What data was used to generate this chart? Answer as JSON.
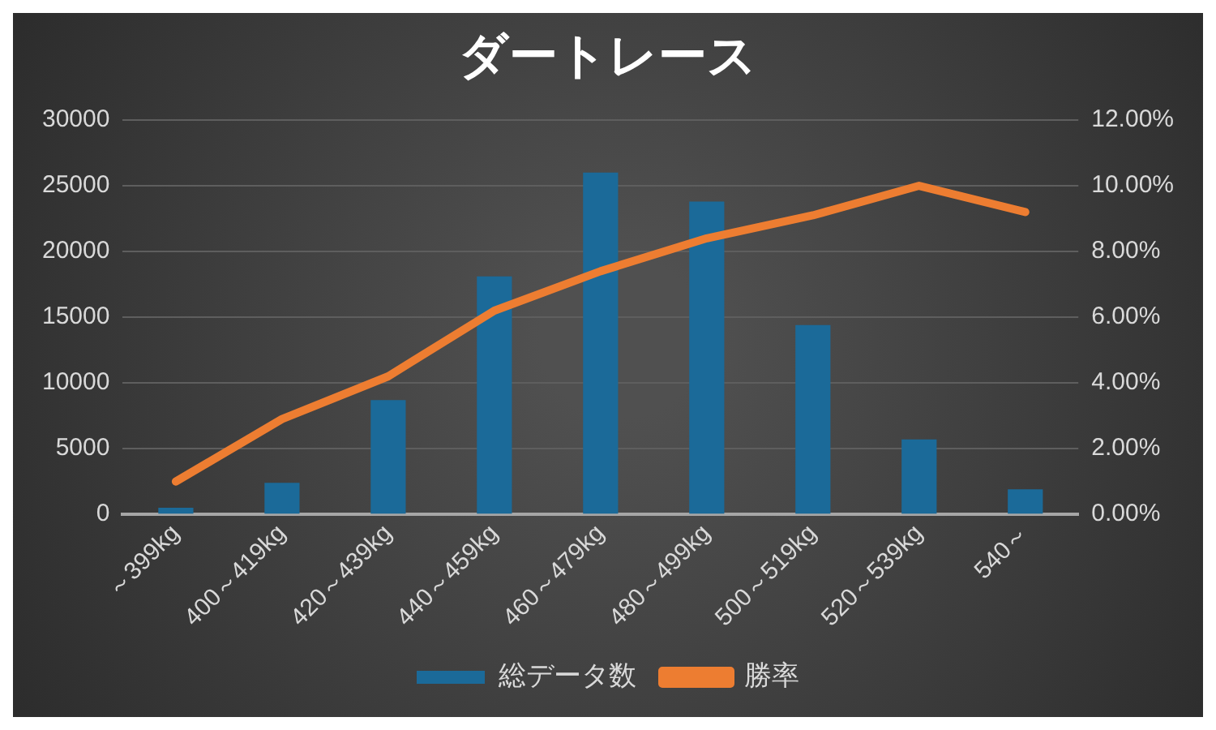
{
  "chart_data": {
    "type": "bar",
    "title": "ダートレース",
    "categories": [
      "～399kg",
      "400～419kg",
      "420～439kg",
      "440～459kg",
      "460～479kg",
      "480～499kg",
      "500～519kg",
      "520～539kg",
      "540～"
    ],
    "series": [
      {
        "name": "総データ数",
        "color": "#1b6a99",
        "values": [
          500,
          2400,
          8700,
          18100,
          26000,
          23800,
          14400,
          5700,
          1900
        ]
      },
      {
        "name": "勝率",
        "type": "line",
        "axis": "y2",
        "color": "#ed7d31",
        "values": [
          1.0,
          2.9,
          4.2,
          6.2,
          7.4,
          8.4,
          9.1,
          10.0,
          9.2
        ]
      }
    ],
    "ylim": [
      0,
      30000
    ],
    "yticks": [
      0,
      5000,
      10000,
      15000,
      20000,
      25000,
      30000
    ],
    "y2lim": [
      0,
      12
    ],
    "y2ticks": [
      {
        "value": 0,
        "label": "0.00%"
      },
      {
        "value": 2,
        "label": "2.00%"
      },
      {
        "value": 4,
        "label": "4.00%"
      },
      {
        "value": 6,
        "label": "6.00%"
      },
      {
        "value": 8,
        "label": "8.00%"
      },
      {
        "value": 10,
        "label": "10.00%"
      },
      {
        "value": 12,
        "label": "12.00%"
      }
    ],
    "grid": "y",
    "legend": "bottom",
    "marker": "none",
    "line_style": "solid"
  }
}
